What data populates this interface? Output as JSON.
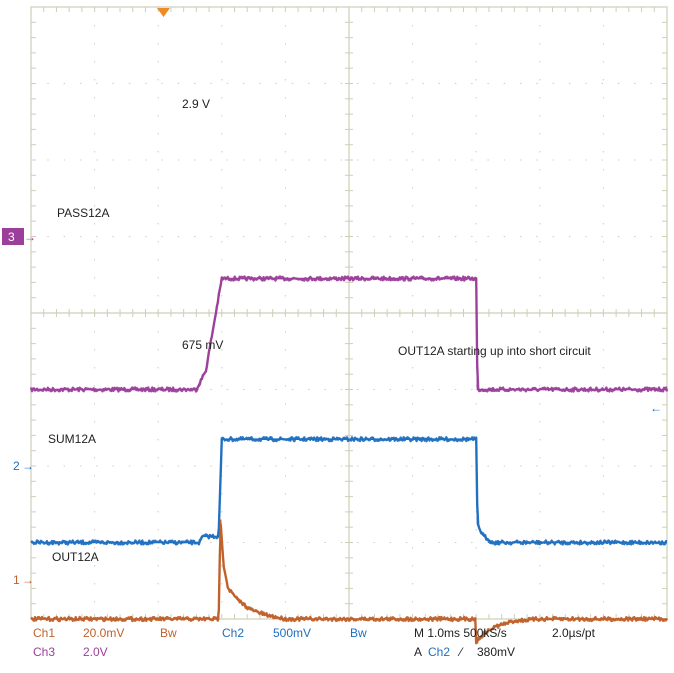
{
  "chart_data": {
    "type": "line",
    "title": "",
    "xlabel": "",
    "ylabel": "",
    "grid": true,
    "x_unit": "ms",
    "xlim": [
      0,
      10
    ],
    "divisions": {
      "x": 10,
      "y": 8
    },
    "series": [
      {
        "name": "PASS12A",
        "channel": "Ch3",
        "color": "#9b3f9b",
        "marker_label": "3",
        "volts_per_div": 2.0,
        "ground_div": -1.0,
        "x": [
          0,
          2.6,
          2.75,
          3.0,
          3.7,
          7.0,
          7.02,
          10
        ],
        "volts": [
          0,
          0,
          0.5,
          2.9,
          2.9,
          2.9,
          0,
          0
        ]
      },
      {
        "name": "SUM12A",
        "channel": "Ch2",
        "color": "#1f6fc1",
        "marker_label": "2",
        "volts_per_div": 0.5,
        "ground_div": -3.0,
        "x": [
          0,
          2.65,
          2.7,
          2.95,
          3.0,
          3.02,
          7.0,
          7.02,
          7.1,
          7.25,
          10
        ],
        "volts": [
          0,
          0,
          0.04,
          0.04,
          0.675,
          0.675,
          0.675,
          0.12,
          0.05,
          0,
          0
        ]
      },
      {
        "name": "OUT12A",
        "channel": "Ch1",
        "color": "#c0602a",
        "marker_label": "1",
        "volts_per_div": 0.02,
        "ground_div": -4.0,
        "x": [
          0,
          2.95,
          2.98,
          3.03,
          3.1,
          3.25,
          3.45,
          3.7,
          4.0,
          4.5,
          5.0,
          6.99,
          7.0,
          7.05,
          7.15,
          7.3,
          7.6,
          8.0,
          10
        ],
        "volts": [
          0,
          0,
          0.026,
          0.014,
          0.008,
          0.005,
          0.0025,
          0.001,
          0,
          0,
          0,
          0,
          -0.006,
          -0.005,
          -0.0035,
          -0.002,
          -0.0005,
          0,
          0
        ]
      }
    ],
    "annotations": {
      "pass_level": "2.9 V",
      "sum_level": "675 mV",
      "note": "OUT12A starting up into short circuit"
    }
  },
  "readout": {
    "ch1": "Ch1",
    "ch1_scale": "20.0mV",
    "ch1_bw": "Bw",
    "ch2": "Ch2",
    "ch2_scale": "500mV",
    "ch2_bw": "Bw",
    "ch3": "Ch3",
    "ch3_scale": "2.0V",
    "timebase": "M 1.0ms 500kS/s",
    "per_point": "2.0µs/pt",
    "trigger_prefix": "A",
    "trigger_channel": "Ch2",
    "trigger_slope": "⁄",
    "trigger_level": "380mV"
  },
  "colors": {
    "ch1": "#c0602a",
    "ch2": "#1f6fc1",
    "ch3": "#9b3f9b",
    "grid": "#cfcfb8",
    "trigger_marker": "#f08a24"
  }
}
